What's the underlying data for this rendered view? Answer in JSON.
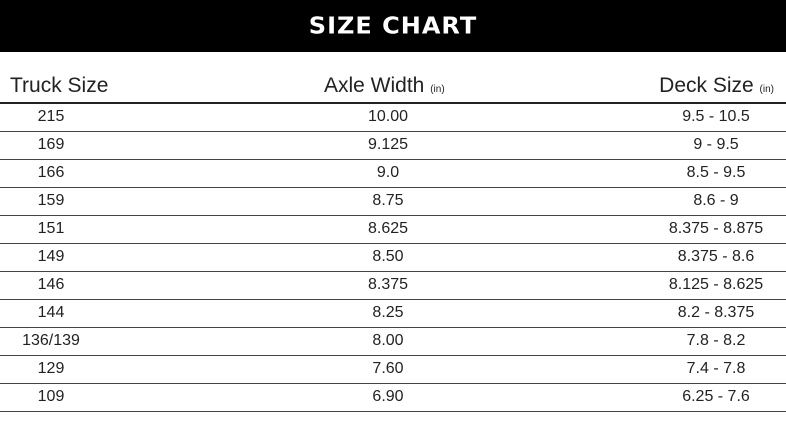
{
  "title": "SIZE CHART",
  "headers": [
    {
      "label": "Truck Size",
      "unit": ""
    },
    {
      "label": "Axle Width",
      "unit": "(in)"
    },
    {
      "label": "Deck Size",
      "unit": "(in)"
    }
  ],
  "rows": [
    [
      "215",
      "10.00",
      "9.5 - 10.5"
    ],
    [
      "169",
      "9.125",
      "9 - 9.5"
    ],
    [
      "166",
      "9.0",
      "8.5 - 9.5"
    ],
    [
      "159",
      "8.75",
      "8.6 - 9"
    ],
    [
      "151",
      "8.625",
      "8.375 - 8.875"
    ],
    [
      "149",
      "8.50",
      "8.375 - 8.6"
    ],
    [
      "146",
      "8.375",
      "8.125 - 8.625"
    ],
    [
      "144",
      "8.25",
      "8.2 - 8.375"
    ],
    [
      "136/139",
      "8.00",
      "7.8 - 8.2"
    ],
    [
      "129",
      "7.60",
      "7.4 - 7.8"
    ],
    [
      "109",
      "6.90",
      "6.25 - 7.6"
    ]
  ]
}
